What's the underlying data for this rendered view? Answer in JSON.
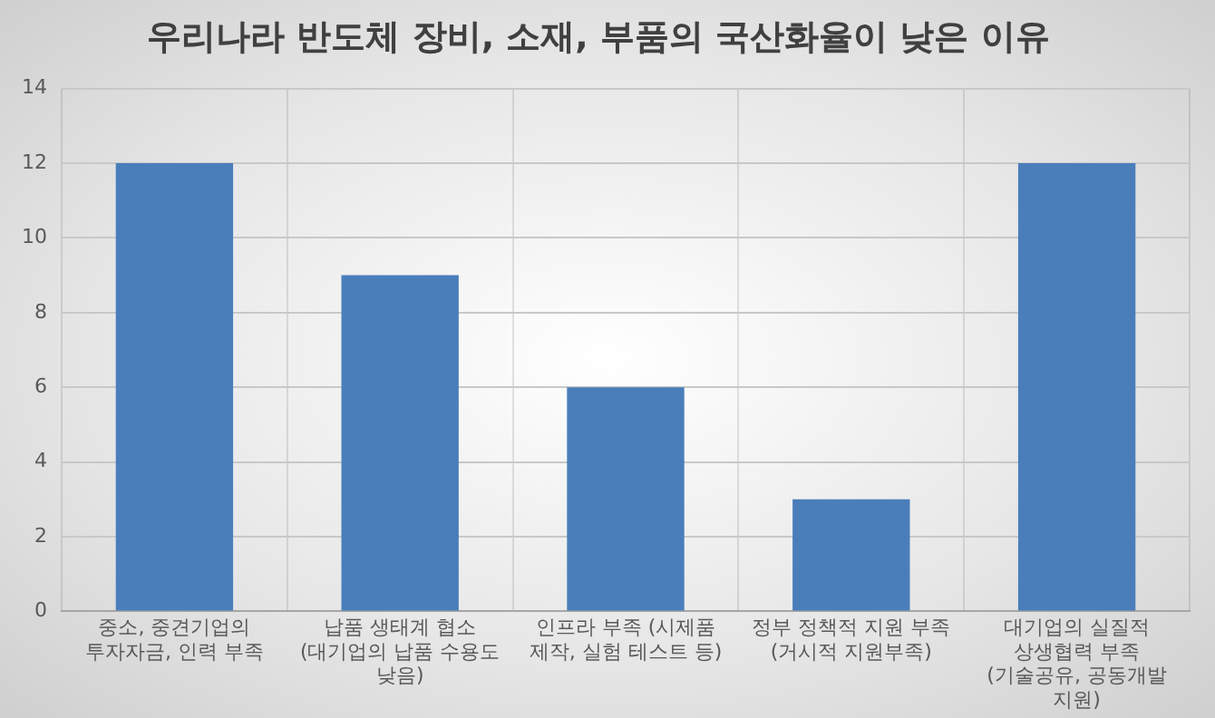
{
  "chart_data": {
    "type": "bar",
    "title": "우리나라 반도체 장비, 소재, 부품의 국산화율이 낮은 이유",
    "categories": [
      "중소, 중견기업의 투자자금, 인력 부족",
      "납품 생태계 협소 (대기업의 납품 수용도 낮음)",
      "인프라 부족 (시제품 제작, 실험 테스트 등)",
      "정부 정책적 지원 부족 (거시적 지원부족)",
      "대기업의 실질적 상생협력 부족 (기술공유, 공동개발 지원)"
    ],
    "values": [
      12,
      9,
      6,
      3,
      12
    ],
    "color": "#4a7ebb",
    "ylim": [
      0,
      14
    ],
    "yticks": [
      0,
      2,
      4,
      6,
      8,
      10,
      12,
      14
    ],
    "grid": true
  }
}
